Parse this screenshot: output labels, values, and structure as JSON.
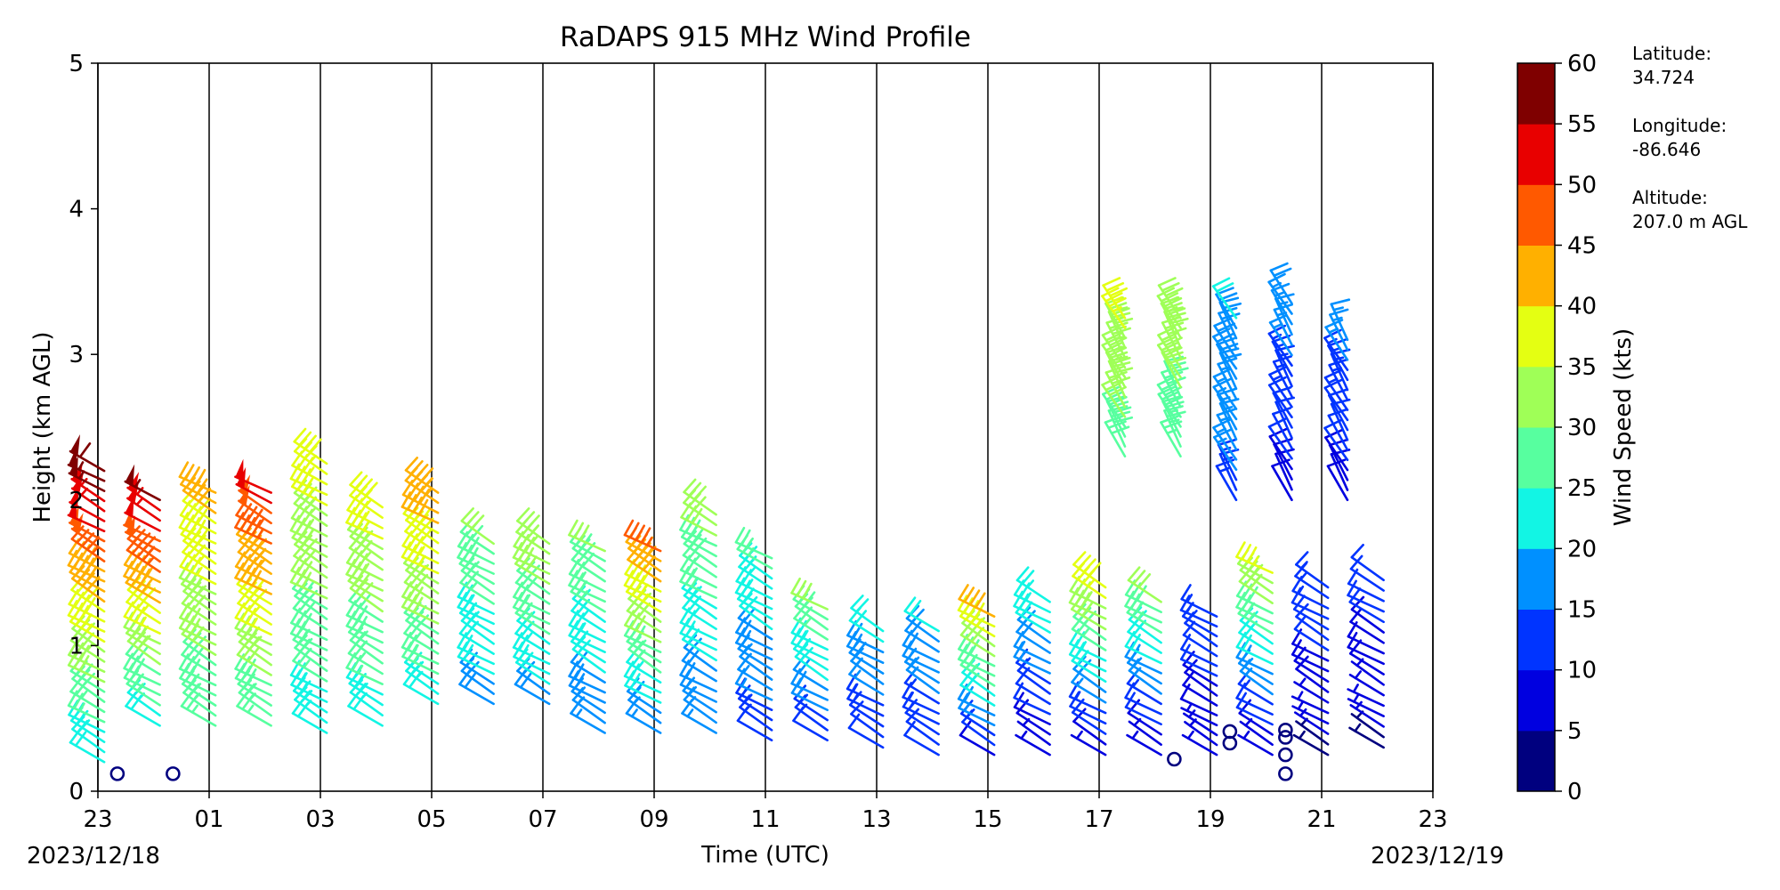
{
  "chart_data": {
    "type": "wind_barb_profile",
    "title": "RaDAPS 915 MHz Wind Profile",
    "xlabel": "Time (UTC)",
    "ylabel": "Height (km AGL)",
    "xlim": [
      0,
      24
    ],
    "ylim": [
      0,
      5
    ],
    "x_tick_labels": [
      "23",
      "01",
      "03",
      "05",
      "07",
      "09",
      "11",
      "13",
      "15",
      "17",
      "19",
      "21",
      "23"
    ],
    "y_tick_labels": [
      "0",
      "1",
      "2",
      "3",
      "4",
      "5"
    ],
    "date_start": "2023/12/18",
    "date_end": "2023/12/19",
    "vertical_gridlines_hours": [
      0,
      2,
      4,
      6,
      8,
      10,
      12,
      14,
      16,
      18,
      20,
      22,
      24
    ],
    "colorbar": {
      "label": "Wind Speed (kts)",
      "ticks": [
        "0",
        "5",
        "10",
        "15",
        "20",
        "25",
        "30",
        "35",
        "40",
        "45",
        "50",
        "55",
        "60"
      ],
      "range": [
        0,
        60
      ],
      "colors": [
        "#00007f",
        "#0000e0",
        "#0034ff",
        "#0090ff",
        "#12f5e4",
        "#57ff9f",
        "#9fff57",
        "#e4ff12",
        "#ffb000",
        "#ff5900",
        "#e80000",
        "#7f0000"
      ]
    },
    "station_info": {
      "latitude_label": "Latitude:",
      "latitude": "34.724",
      "longitude_label": "Longitude:",
      "longitude": "-86.646",
      "altitude_label": "Altitude:",
      "altitude": "207.0 m AGL"
    },
    "profiles": [
      {
        "hour": 0.05,
        "base_km": 0.2,
        "top_km": 2.2,
        "speed_low": 20,
        "speed_high": 58,
        "dir_deg": 300
      },
      {
        "hour": 1.05,
        "base_km": 0.45,
        "top_km": 2.0,
        "speed_low": 22,
        "speed_high": 56,
        "dir_deg": 300
      },
      {
        "hour": 2.05,
        "base_km": 0.45,
        "top_km": 2.05,
        "speed_low": 25,
        "speed_high": 42,
        "dir_deg": 300
      },
      {
        "hour": 3.05,
        "base_km": 0.45,
        "top_km": 2.05,
        "speed_low": 25,
        "speed_high": 52,
        "dir_deg": 300
      },
      {
        "hour": 4.05,
        "base_km": 0.4,
        "top_km": 2.25,
        "speed_low": 22,
        "speed_high": 38,
        "dir_deg": 300
      },
      {
        "hour": 5.05,
        "base_km": 0.45,
        "top_km": 1.95,
        "speed_low": 22,
        "speed_high": 38,
        "dir_deg": 300
      },
      {
        "hour": 6.05,
        "base_km": 0.6,
        "top_km": 2.05,
        "speed_low": 22,
        "speed_high": 44,
        "dir_deg": 300
      },
      {
        "hour": 7.05,
        "base_km": 0.6,
        "top_km": 1.7,
        "speed_low": 18,
        "speed_high": 30,
        "dir_deg": 300
      },
      {
        "hour": 8.05,
        "base_km": 0.6,
        "top_km": 1.7,
        "speed_low": 18,
        "speed_high": 34,
        "dir_deg": 300
      },
      {
        "hour": 9.05,
        "base_km": 0.4,
        "top_km": 1.65,
        "speed_low": 15,
        "speed_high": 30,
        "dir_deg": 300
      },
      {
        "hour": 10.05,
        "base_km": 0.4,
        "top_km": 1.65,
        "speed_low": 15,
        "speed_high": 46,
        "dir_deg": 300
      },
      {
        "hour": 11.05,
        "base_km": 0.4,
        "top_km": 1.9,
        "speed_low": 15,
        "speed_high": 32,
        "dir_deg": 300
      },
      {
        "hour": 12.05,
        "base_km": 0.35,
        "top_km": 1.6,
        "speed_low": 12,
        "speed_high": 26,
        "dir_deg": 300
      },
      {
        "hour": 13.05,
        "base_km": 0.35,
        "top_km": 1.25,
        "speed_low": 12,
        "speed_high": 30,
        "dir_deg": 300
      },
      {
        "hour": 14.05,
        "base_km": 0.3,
        "top_km": 1.1,
        "speed_low": 10,
        "speed_high": 22,
        "dir_deg": 300
      },
      {
        "hour": 15.05,
        "base_km": 0.25,
        "top_km": 1.1,
        "speed_low": 10,
        "speed_high": 20,
        "dir_deg": 300
      },
      {
        "hour": 16.05,
        "base_km": 0.25,
        "top_km": 1.2,
        "speed_low": 8,
        "speed_high": 42,
        "dir_deg": 300
      },
      {
        "hour": 17.05,
        "base_km": 0.25,
        "top_km": 1.3,
        "speed_low": 6,
        "speed_high": 24,
        "dir_deg": 300
      },
      {
        "hour": 18.05,
        "base_km": 0.25,
        "top_km": 1.4,
        "speed_low": 6,
        "speed_high": 38,
        "dir_deg": 300
      },
      {
        "hour": 19.05,
        "base_km": 0.25,
        "top_km": 1.3,
        "speed_low": 5,
        "speed_high": 30,
        "dir_deg": 300
      },
      {
        "hour": 20.05,
        "base_km": 0.25,
        "top_km": 1.2,
        "speed_low": 5,
        "speed_high": 14,
        "dir_deg": 300
      },
      {
        "hour": 21.05,
        "base_km": 0.25,
        "top_km": 1.5,
        "speed_low": 5,
        "speed_high": 36,
        "dir_deg": 300
      },
      {
        "hour": 22.05,
        "base_km": 0.25,
        "top_km": 1.4,
        "speed_low": 4,
        "speed_high": 14,
        "dir_deg": 300
      },
      {
        "hour": 23.05,
        "base_km": 0.3,
        "top_km": 1.45,
        "speed_low": 4,
        "speed_high": 12,
        "dir_deg": 300
      }
    ],
    "upper_profiles": [
      {
        "hour": 18.4,
        "base_km": 2.3,
        "top_km": 3.25,
        "speed_low": 28,
        "speed_high": 36
      },
      {
        "hour": 19.4,
        "base_km": 2.3,
        "top_km": 3.25,
        "speed_low": 26,
        "speed_high": 34
      },
      {
        "hour": 20.4,
        "base_km": 2.0,
        "top_km": 3.25,
        "speed_low": 14,
        "speed_high": 20
      },
      {
        "hour": 21.4,
        "base_km": 2.0,
        "top_km": 3.35,
        "speed_low": 8,
        "speed_high": 18
      },
      {
        "hour": 22.4,
        "base_km": 2.0,
        "top_km": 3.1,
        "speed_low": 8,
        "speed_high": 16
      }
    ],
    "calm_points": [
      {
        "hour": 0.35,
        "km": 0.12
      },
      {
        "hour": 1.35,
        "km": 0.12
      },
      {
        "hour": 19.35,
        "km": 0.22
      },
      {
        "hour": 20.35,
        "km": 0.33
      },
      {
        "hour": 20.35,
        "km": 0.41
      },
      {
        "hour": 21.35,
        "km": 0.12
      },
      {
        "hour": 21.35,
        "km": 0.25
      },
      {
        "hour": 21.35,
        "km": 0.37
      },
      {
        "hour": 21.35,
        "km": 0.42
      }
    ]
  }
}
